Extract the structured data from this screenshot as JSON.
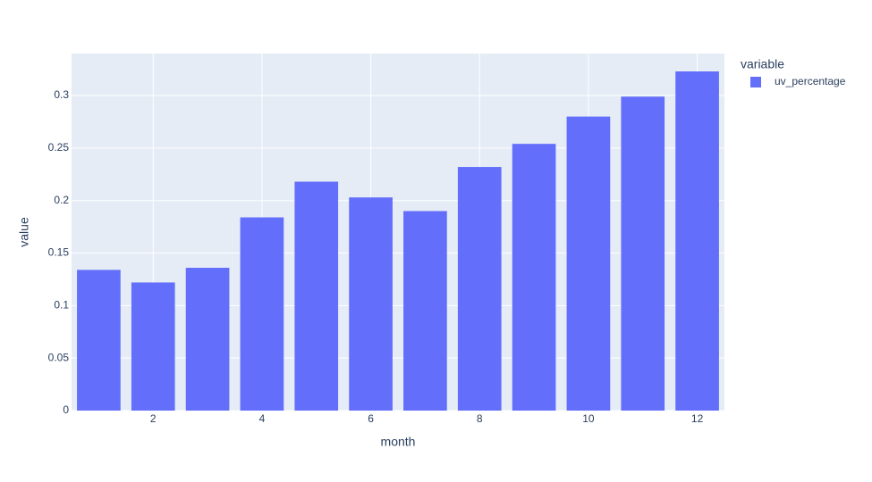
{
  "chart_data": {
    "type": "bar",
    "x": [
      1,
      2,
      3,
      4,
      5,
      6,
      7,
      8,
      9,
      10,
      11,
      12
    ],
    "series": [
      {
        "name": "uv_percentage",
        "color": "#636efa",
        "values": [
          0.134,
          0.122,
          0.136,
          0.184,
          0.218,
          0.203,
          0.19,
          0.232,
          0.254,
          0.28,
          0.299,
          0.323
        ]
      }
    ],
    "xlim": [
      0.5,
      12.5
    ],
    "xticks": [
      2,
      4,
      6,
      8,
      10,
      12
    ],
    "ylim": [
      0,
      0.34
    ],
    "yticks": [
      0,
      0.05,
      0.1,
      0.15,
      0.2,
      0.25,
      0.3
    ],
    "xlabel": "month",
    "ylabel": "value",
    "legend_title": "variable",
    "grid": true
  }
}
